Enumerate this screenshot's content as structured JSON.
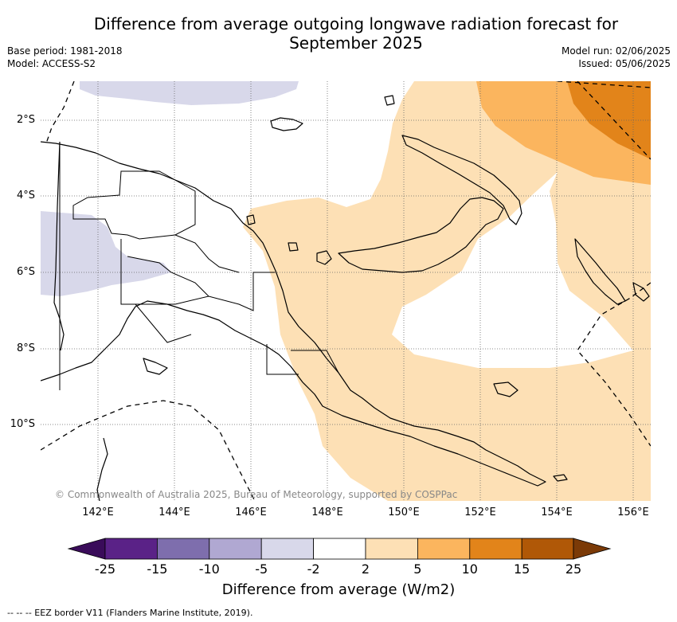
{
  "title": {
    "line1": "Difference from average outgoing longwave radiation forecast for",
    "line2": "September 2025"
  },
  "meta": {
    "base_period": "Base period: 1981-2018",
    "model": "Model: ACCESS-S2",
    "model_run": "Model run: 02/06/2025",
    "issued": "Issued: 05/06/2025"
  },
  "map": {
    "lat_labels": [
      "2°S",
      "4°S",
      "6°S",
      "8°S",
      "10°S"
    ],
    "lon_labels": [
      "142°E",
      "144°E",
      "146°E",
      "148°E",
      "150°E",
      "152°E",
      "154°E",
      "156°E"
    ],
    "copyright": "© Commonwealth of Australia 2025, Bureau of Meteorology, supported by COSPPac",
    "colors": {
      "neg_5_to_2": "#d8d8ea",
      "pos_2_to_5": "#fde0b5",
      "pos_5_to_10": "#fbb55e",
      "pos_10_to_15": "#e2841a"
    }
  },
  "colorbar": {
    "ticks": [
      "-25",
      "-15",
      "-10",
      "-5",
      "-2",
      "2",
      "5",
      "10",
      "15",
      "25"
    ],
    "colors": [
      "#3a0c5a",
      "#5a2287",
      "#7e6ead",
      "#b0a8d2",
      "#d8d8ea",
      "#ffffff",
      "#fde0b5",
      "#fbb55e",
      "#e2841a",
      "#b05807",
      "#7b3a07"
    ],
    "title": "Difference from average (W/m2)"
  },
  "footnote": "--  --  -- EEZ border V11 (Flanders Marine Institute, 2019)."
}
